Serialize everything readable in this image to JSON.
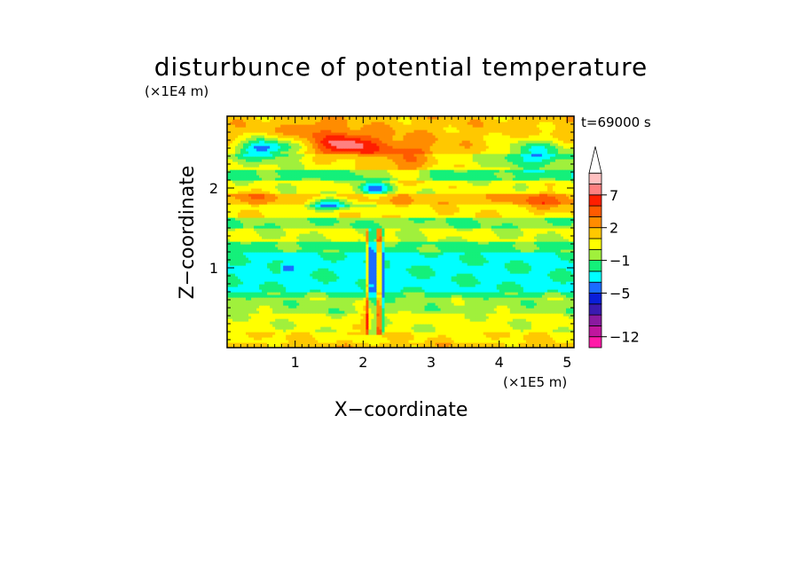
{
  "chart_data": {
    "type": "heatmap",
    "title": "disturbunce of potential temperature",
    "time_label": "t=69000 s",
    "xlabel": "X−coordinate",
    "ylabel": "Z−coordinate",
    "x_unit": "(×1E5 m)",
    "y_unit": "(×1E4 m)",
    "xlim": [
      0,
      5.1
    ],
    "ylim": [
      0,
      2.9
    ],
    "x_ticks": [
      {
        "value": 1,
        "label": "1"
      },
      {
        "value": 2,
        "label": "2"
      },
      {
        "value": 3,
        "label": "3"
      },
      {
        "value": 4,
        "label": "4"
      },
      {
        "value": 5,
        "label": "5"
      }
    ],
    "y_ticks": [
      {
        "value": 1,
        "label": "1"
      },
      {
        "value": 2,
        "label": "2"
      }
    ],
    "colorbar": {
      "levels": [
        {
          "color": "#ff1aa8"
        },
        {
          "color": "#c0169e"
        },
        {
          "color": "#8a1aa0"
        },
        {
          "color": "#3a1ab0"
        },
        {
          "color": "#0a1ed8"
        },
        {
          "color": "#1a6cff"
        },
        {
          "color": "#00ffff"
        },
        {
          "color": "#14f07a"
        },
        {
          "color": "#a0f03c"
        },
        {
          "color": "#ffff00"
        },
        {
          "color": "#ffc800"
        },
        {
          "color": "#ff8c00"
        },
        {
          "color": "#ff5a00"
        },
        {
          "color": "#ff1e00"
        },
        {
          "color": "#ff8080"
        },
        {
          "color": "#ffc0c0"
        }
      ],
      "tick_labels": [
        {
          "after_level": 0,
          "label": "−12"
        },
        {
          "after_level": 4,
          "label": "−5"
        },
        {
          "after_level": 7,
          "label": "−1"
        },
        {
          "after_level": 10,
          "label": "2"
        },
        {
          "after_level": 13,
          "label": "7"
        }
      ]
    }
  }
}
